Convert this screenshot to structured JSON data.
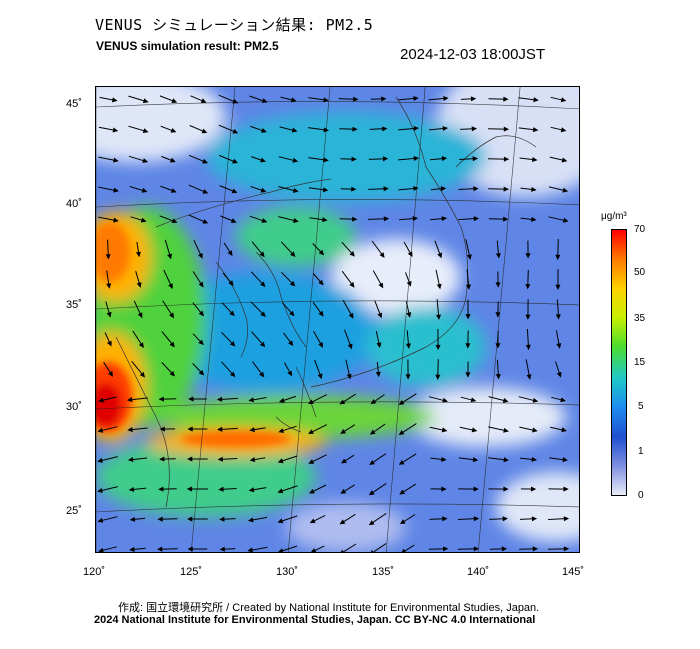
{
  "header": {
    "title_jp": "VENUS シミュレーション結果: PM2.5",
    "title_en": "VENUS simulation result: PM2.5",
    "timestamp": "2024-12-03 18:00JST"
  },
  "map": {
    "lat_labels": [
      "45˚",
      "40˚",
      "35˚",
      "30˚",
      "25˚"
    ],
    "lon_labels": [
      "120˚",
      "125˚",
      "130˚",
      "135˚",
      "140˚",
      "145˚"
    ]
  },
  "colorbar": {
    "unit": "μg/m³",
    "ticks": [
      "70",
      "50",
      "35",
      "15",
      "5",
      "1",
      "0"
    ],
    "colors": [
      "#ff0000",
      "#ff7a00",
      "#ffd200",
      "#c8f000",
      "#4ddd2e",
      "#1ec8c8",
      "#1e8cf0",
      "#1e50d0",
      "#7f8fe0",
      "#e8ecf8"
    ]
  },
  "footer": {
    "credit": "作成: 国立環境研究所 / Created by National Institute for Environmental Studies, Japan.",
    "copyright": "2024 National Institute for Environmental Studies, Japan. CC BY-NC 4.0 International"
  }
}
